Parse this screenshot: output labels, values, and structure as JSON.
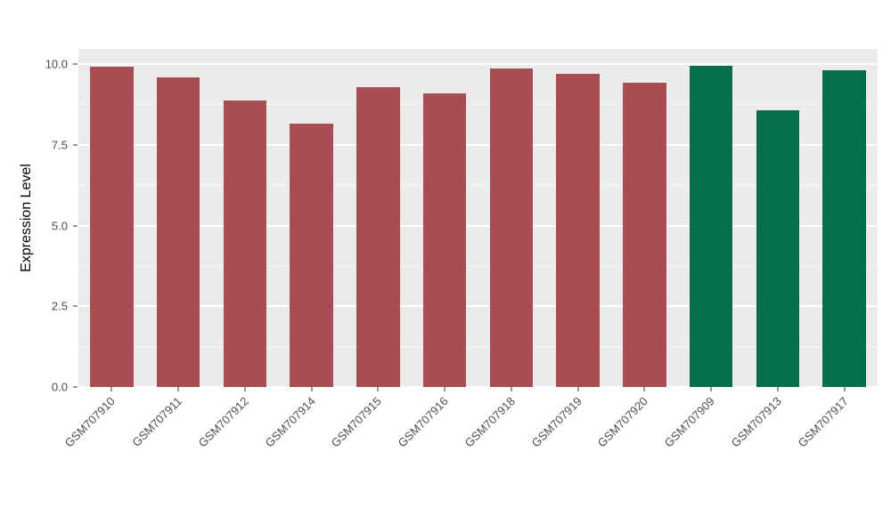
{
  "chart_data": {
    "type": "bar",
    "title": "",
    "xlabel": "",
    "ylabel": "Expression Level",
    "categories": [
      "GSM707910",
      "GSM707911",
      "GSM707912",
      "GSM707914",
      "GSM707915",
      "GSM707916",
      "GSM707918",
      "GSM707919",
      "GSM707920",
      "GSM707909",
      "GSM707913",
      "GSM707917"
    ],
    "values": [
      9.93,
      9.58,
      8.88,
      8.15,
      9.28,
      9.08,
      9.87,
      9.7,
      9.43,
      9.95,
      8.58,
      9.82
    ],
    "colors": [
      "#A84D54",
      "#A84D54",
      "#A84D54",
      "#A84D54",
      "#A84D54",
      "#A84D54",
      "#A84D54",
      "#A84D54",
      "#A84D54",
      "#066E48",
      "#066E48",
      "#066E48"
    ],
    "group_palette": {
      "red_group": "#A84D54",
      "green_group": "#066E48"
    },
    "ylim": [
      0,
      10.47
    ],
    "yticks": [
      0,
      2.5,
      5,
      7.5,
      10
    ],
    "ytick_labels": [
      "0.0",
      "2.5",
      "5.0",
      "7.5",
      "10.0"
    ],
    "minor_ticks": [
      1.25,
      3.75,
      6.25,
      8.75
    ],
    "bar_width_fraction": 0.65,
    "panel_bg": "#EBEBEB",
    "grid_color": "#FFFFFF",
    "background": "#FFFFFF",
    "legend": "none"
  }
}
